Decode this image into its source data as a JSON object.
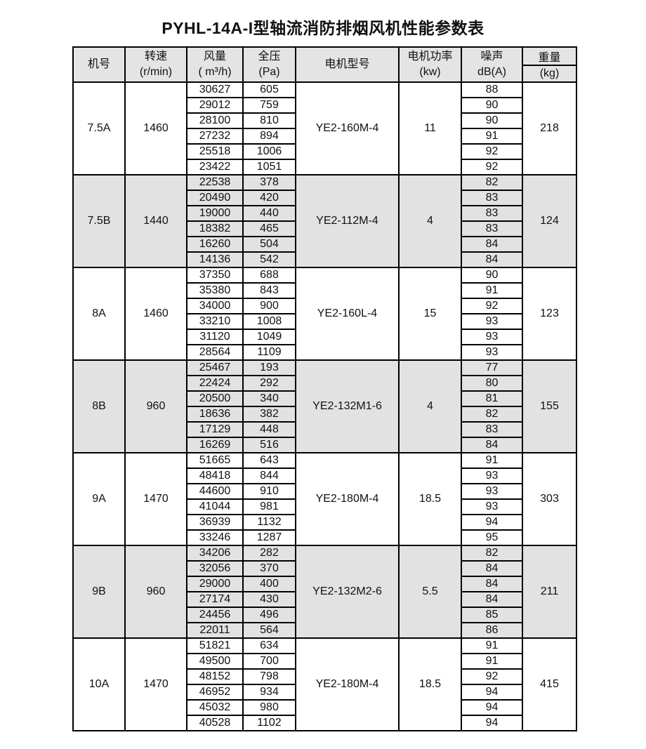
{
  "title": "PYHL-14A-I型轴流消防排烟风机性能参数表",
  "colors": {
    "border": "#000000",
    "header_bg": "#e4e4e4",
    "shaded_block_bg": "#e2e2e2",
    "text": "#111111",
    "page_bg": "#ffffff"
  },
  "table": {
    "headers": {
      "model": "机号",
      "speed": [
        "转速",
        "(r/min)"
      ],
      "flow": [
        "风量",
        "( m³/h)"
      ],
      "pressure": [
        "全压",
        "(Pa)"
      ],
      "motor": "电机型号",
      "power": [
        "电机功率",
        "(kw)"
      ],
      "noise": [
        "噪声",
        "dB(A)"
      ],
      "weight": [
        "重量",
        "(kg)"
      ]
    },
    "blocks": [
      {
        "model": "7.5A",
        "speed": "1460",
        "motor": "YE2-160M-4",
        "power": "11",
        "weight": "218",
        "shaded": false,
        "rows": [
          {
            "flow": "30627",
            "pressure": "605",
            "noise": "88"
          },
          {
            "flow": "29012",
            "pressure": "759",
            "noise": "90"
          },
          {
            "flow": "28100",
            "pressure": "810",
            "noise": "90"
          },
          {
            "flow": "27232",
            "pressure": "894",
            "noise": "91"
          },
          {
            "flow": "25518",
            "pressure": "1006",
            "noise": "92"
          },
          {
            "flow": "23422",
            "pressure": "1051",
            "noise": "92"
          }
        ]
      },
      {
        "model": "7.5B",
        "speed": "1440",
        "motor": "YE2-112M-4",
        "power": "4",
        "weight": "124",
        "shaded": true,
        "rows": [
          {
            "flow": "22538",
            "pressure": "378",
            "noise": "82"
          },
          {
            "flow": "20490",
            "pressure": "420",
            "noise": "83"
          },
          {
            "flow": "19000",
            "pressure": "440",
            "noise": "83"
          },
          {
            "flow": "18382",
            "pressure": "465",
            "noise": "83"
          },
          {
            "flow": "16260",
            "pressure": "504",
            "noise": "84"
          },
          {
            "flow": "14136",
            "pressure": "542",
            "noise": "84"
          }
        ]
      },
      {
        "model": "8A",
        "speed": "1460",
        "motor": "YE2-160L-4",
        "power": "15",
        "weight": "123",
        "shaded": false,
        "rows": [
          {
            "flow": "37350",
            "pressure": "688",
            "noise": "90"
          },
          {
            "flow": "35380",
            "pressure": "843",
            "noise": "91"
          },
          {
            "flow": "34000",
            "pressure": "900",
            "noise": "92"
          },
          {
            "flow": "33210",
            "pressure": "1008",
            "noise": "93"
          },
          {
            "flow": "31120",
            "pressure": "1049",
            "noise": "93"
          },
          {
            "flow": "28564",
            "pressure": "1109",
            "noise": "93"
          }
        ]
      },
      {
        "model": "8B",
        "speed": "960",
        "motor": "YE2-132M1-6",
        "power": "4",
        "weight": "155",
        "shaded": true,
        "rows": [
          {
            "flow": "25467",
            "pressure": "193",
            "noise": "77"
          },
          {
            "flow": "22424",
            "pressure": "292",
            "noise": "80"
          },
          {
            "flow": "20500",
            "pressure": "340",
            "noise": "81"
          },
          {
            "flow": "18636",
            "pressure": "382",
            "noise": "82"
          },
          {
            "flow": "17129",
            "pressure": "448",
            "noise": "83"
          },
          {
            "flow": "16269",
            "pressure": "516",
            "noise": "84"
          }
        ]
      },
      {
        "model": "9A",
        "speed": "1470",
        "motor": "YE2-180M-4",
        "power": "18.5",
        "weight": "303",
        "shaded": false,
        "rows": [
          {
            "flow": "51665",
            "pressure": "643",
            "noise": "91"
          },
          {
            "flow": "48418",
            "pressure": "844",
            "noise": "93"
          },
          {
            "flow": "44600",
            "pressure": "910",
            "noise": "93"
          },
          {
            "flow": "41044",
            "pressure": "981",
            "noise": "93"
          },
          {
            "flow": "36939",
            "pressure": "1132",
            "noise": "94"
          },
          {
            "flow": "33246",
            "pressure": "1287",
            "noise": "95"
          }
        ]
      },
      {
        "model": "9B",
        "speed": "960",
        "motor": "YE2-132M2-6",
        "power": "5.5",
        "weight": "211",
        "shaded": true,
        "rows": [
          {
            "flow": "34206",
            "pressure": "282",
            "noise": "82"
          },
          {
            "flow": "32056",
            "pressure": "370",
            "noise": "84"
          },
          {
            "flow": "29000",
            "pressure": "400",
            "noise": "84"
          },
          {
            "flow": "27174",
            "pressure": "430",
            "noise": "84"
          },
          {
            "flow": "24456",
            "pressure": "496",
            "noise": "85"
          },
          {
            "flow": "22011",
            "pressure": "564",
            "noise": "86"
          }
        ]
      },
      {
        "model": "10A",
        "speed": "1470",
        "motor": "YE2-180M-4",
        "power": "18.5",
        "weight": "415",
        "shaded": false,
        "rows": [
          {
            "flow": "51821",
            "pressure": "634",
            "noise": "91"
          },
          {
            "flow": "49500",
            "pressure": "700",
            "noise": "91"
          },
          {
            "flow": "48152",
            "pressure": "798",
            "noise": "92"
          },
          {
            "flow": "46952",
            "pressure": "934",
            "noise": "94"
          },
          {
            "flow": "45032",
            "pressure": "980",
            "noise": "94"
          },
          {
            "flow": "40528",
            "pressure": "1102",
            "noise": "94"
          }
        ]
      }
    ]
  }
}
